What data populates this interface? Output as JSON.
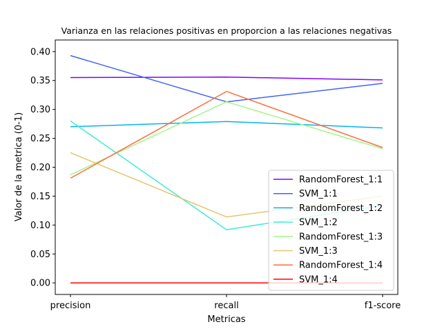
{
  "chart_data": {
    "type": "line",
    "title": "Varianza en las relaciones positivas en proporcion a las relaciones negativas",
    "xlabel": "Metricas",
    "ylabel": "Valor de la metrica (0-1)",
    "categories": [
      "precision",
      "recall",
      "f1-score"
    ],
    "ylim": [
      -0.02,
      0.42
    ],
    "yticks": [
      "0.00",
      "0.05",
      "0.10",
      "0.15",
      "0.20",
      "0.25",
      "0.30",
      "0.35",
      "0.40"
    ],
    "grid": false,
    "legend_position": "lower-right",
    "series": [
      {
        "name": "RandomForest_1:1",
        "color": "#8000ff",
        "values": [
          0.355,
          0.356,
          0.351
        ]
      },
      {
        "name": "SVM_1:1",
        "color": "#4062fa",
        "values": [
          0.393,
          0.313,
          0.345
        ]
      },
      {
        "name": "RandomForest_1:2",
        "color": "#00b5eb",
        "values": [
          0.27,
          0.279,
          0.268
        ]
      },
      {
        "name": "SVM_1:2",
        "color": "#40ecd4",
        "values": [
          0.28,
          0.092,
          0.134
        ]
      },
      {
        "name": "RandomForest_1:3",
        "color": "#9ff78a",
        "values": [
          0.187,
          0.313,
          0.232
        ]
      },
      {
        "name": "SVM_1:3",
        "color": "#e5c56c",
        "values": [
          0.225,
          0.114,
          0.15
        ]
      },
      {
        "name": "RandomForest_1:4",
        "color": "#ff6d3a",
        "values": [
          0.181,
          0.331,
          0.234
        ]
      },
      {
        "name": "SVM_1:4",
        "color": "#ff0000",
        "values": [
          0.0,
          0.0,
          0.0
        ]
      }
    ]
  }
}
